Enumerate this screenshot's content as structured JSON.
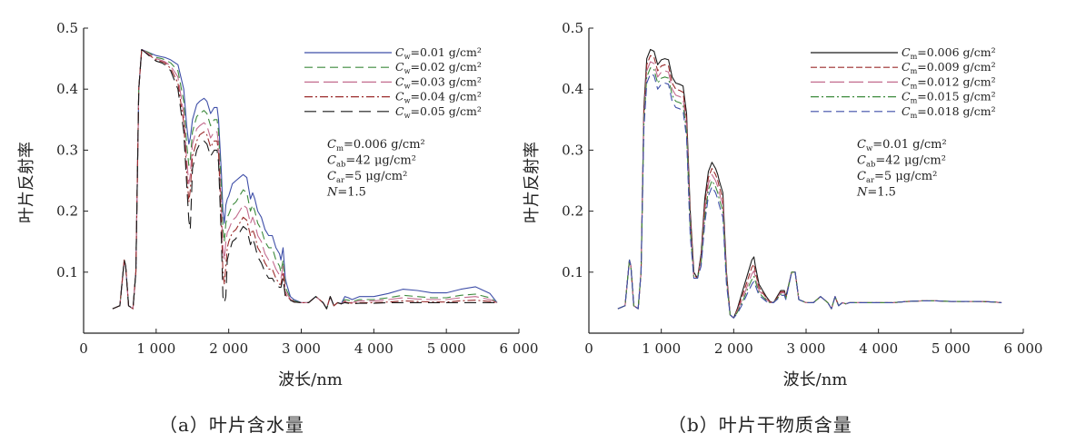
{
  "figure": {
    "captions": [
      "（a）叶片含水量",
      "（b）叶片干物质含量"
    ]
  },
  "chart_data": [
    {
      "type": "line",
      "xlabel": "波长/nm",
      "ylabel": "叶片反射率",
      "xlim": [
        0,
        6000
      ],
      "ylim": [
        0,
        0.5
      ],
      "x_ticks": [
        0,
        1000,
        2000,
        3000,
        4000,
        5000,
        6000
      ],
      "x_tick_labels": [
        "0",
        "1 000",
        "2 000",
        "3 000",
        "4 000",
        "5 000",
        "6 000"
      ],
      "y_ticks": [
        0.1,
        0.2,
        0.3,
        0.4,
        0.5
      ],
      "y_tick_labels": [
        "0.1",
        "0.2",
        "0.3",
        "0.4",
        "0.5"
      ],
      "grid": false,
      "legend_position": "top-right",
      "annotation": [
        "C_m=0.006 g/cm²",
        "C_ab=42 μg/cm²",
        "C_ar=5 μg/cm²",
        "N=1.5"
      ],
      "x": [
        400,
        500,
        560,
        580,
        620,
        680,
        720,
        760,
        800,
        900,
        1000,
        1080,
        1120,
        1200,
        1300,
        1380,
        1420,
        1450,
        1470,
        1500,
        1560,
        1600,
        1660,
        1700,
        1750,
        1800,
        1840,
        1860,
        1900,
        1920,
        1940,
        1960,
        1980,
        2000,
        2050,
        2100,
        2150,
        2200,
        2250,
        2300,
        2330,
        2360,
        2400,
        2450,
        2500,
        2550,
        2600,
        2650,
        2700,
        2720,
        2750,
        2780,
        2800,
        2850,
        2900,
        3000,
        3100,
        3200,
        3250,
        3300,
        3350,
        3400,
        3450,
        3500,
        3550,
        3600,
        3650,
        3700,
        3800,
        4000,
        4200,
        4400,
        4600,
        4800,
        5000,
        5200,
        5400,
        5600,
        5700
      ],
      "series": [
        {
          "name": "C_w=0.01 g/cm²",
          "color": "#3f4fa8",
          "dash": "",
          "values": [
            0.04,
            0.045,
            0.12,
            0.11,
            0.045,
            0.04,
            0.1,
            0.4,
            0.465,
            0.46,
            0.455,
            0.453,
            0.452,
            0.448,
            0.44,
            0.4,
            0.34,
            0.31,
            0.32,
            0.35,
            0.375,
            0.38,
            0.385,
            0.38,
            0.36,
            0.37,
            0.37,
            0.35,
            0.26,
            0.2,
            0.18,
            0.21,
            0.22,
            0.225,
            0.245,
            0.25,
            0.255,
            0.26,
            0.255,
            0.22,
            0.23,
            0.22,
            0.2,
            0.19,
            0.17,
            0.16,
            0.16,
            0.14,
            0.13,
            0.12,
            0.14,
            0.09,
            0.08,
            0.06,
            0.055,
            0.05,
            0.05,
            0.06,
            0.055,
            0.05,
            0.04,
            0.06,
            0.045,
            0.05,
            0.048,
            0.06,
            0.058,
            0.055,
            0.06,
            0.06,
            0.065,
            0.072,
            0.07,
            0.066,
            0.066,
            0.072,
            0.076,
            0.065,
            0.05
          ]
        },
        {
          "name": "C_w=0.02 g/cm²",
          "color": "#3d8a3d",
          "dash": "9 5",
          "values": [
            0.04,
            0.045,
            0.12,
            0.11,
            0.045,
            0.04,
            0.1,
            0.4,
            0.465,
            0.46,
            0.452,
            0.45,
            0.448,
            0.443,
            0.43,
            0.38,
            0.31,
            0.275,
            0.285,
            0.33,
            0.355,
            0.36,
            0.365,
            0.36,
            0.34,
            0.35,
            0.35,
            0.33,
            0.23,
            0.17,
            0.15,
            0.18,
            0.19,
            0.195,
            0.21,
            0.215,
            0.225,
            0.235,
            0.23,
            0.2,
            0.21,
            0.2,
            0.18,
            0.17,
            0.15,
            0.14,
            0.14,
            0.12,
            0.11,
            0.1,
            0.12,
            0.08,
            0.07,
            0.058,
            0.053,
            0.05,
            0.05,
            0.06,
            0.055,
            0.05,
            0.04,
            0.06,
            0.045,
            0.05,
            0.048,
            0.055,
            0.054,
            0.052,
            0.055,
            0.055,
            0.058,
            0.062,
            0.06,
            0.058,
            0.058,
            0.062,
            0.064,
            0.058,
            0.05
          ]
        },
        {
          "name": "C_w=0.03 g/cm²",
          "color": "#c36b8e",
          "dash": "16 5",
          "values": [
            0.04,
            0.045,
            0.12,
            0.11,
            0.045,
            0.04,
            0.1,
            0.4,
            0.465,
            0.458,
            0.45,
            0.447,
            0.445,
            0.438,
            0.42,
            0.36,
            0.285,
            0.245,
            0.26,
            0.31,
            0.335,
            0.34,
            0.345,
            0.34,
            0.32,
            0.33,
            0.33,
            0.31,
            0.2,
            0.14,
            0.12,
            0.15,
            0.165,
            0.17,
            0.185,
            0.19,
            0.2,
            0.21,
            0.205,
            0.18,
            0.19,
            0.18,
            0.16,
            0.15,
            0.13,
            0.12,
            0.12,
            0.105,
            0.095,
            0.09,
            0.11,
            0.07,
            0.065,
            0.056,
            0.052,
            0.05,
            0.05,
            0.06,
            0.055,
            0.05,
            0.04,
            0.06,
            0.045,
            0.05,
            0.048,
            0.053,
            0.052,
            0.05,
            0.053,
            0.053,
            0.055,
            0.058,
            0.056,
            0.055,
            0.055,
            0.058,
            0.06,
            0.055,
            0.05
          ]
        },
        {
          "name": "C_w=0.04 g/cm²",
          "color": "#9b2c2c",
          "dash": "9 3 2 3",
          "values": [
            0.04,
            0.045,
            0.12,
            0.11,
            0.045,
            0.04,
            0.1,
            0.4,
            0.465,
            0.456,
            0.448,
            0.445,
            0.443,
            0.434,
            0.41,
            0.345,
            0.265,
            0.215,
            0.235,
            0.29,
            0.315,
            0.325,
            0.33,
            0.325,
            0.305,
            0.315,
            0.315,
            0.295,
            0.175,
            0.1,
            0.08,
            0.11,
            0.14,
            0.15,
            0.165,
            0.17,
            0.18,
            0.19,
            0.185,
            0.16,
            0.17,
            0.16,
            0.14,
            0.13,
            0.115,
            0.105,
            0.105,
            0.09,
            0.08,
            0.08,
            0.1,
            0.065,
            0.06,
            0.055,
            0.051,
            0.05,
            0.05,
            0.06,
            0.055,
            0.05,
            0.04,
            0.06,
            0.045,
            0.05,
            0.048,
            0.051,
            0.05,
            0.049,
            0.05,
            0.05,
            0.051,
            0.053,
            0.052,
            0.051,
            0.051,
            0.053,
            0.054,
            0.052,
            0.05
          ]
        },
        {
          "name": "C_w=0.05 g/cm²",
          "color": "#1a1a1a",
          "dash": "13 7",
          "values": [
            0.04,
            0.045,
            0.12,
            0.11,
            0.045,
            0.04,
            0.1,
            0.4,
            0.465,
            0.455,
            0.446,
            0.443,
            0.44,
            0.43,
            0.4,
            0.33,
            0.245,
            0.185,
            0.17,
            0.27,
            0.3,
            0.31,
            0.315,
            0.31,
            0.29,
            0.3,
            0.3,
            0.28,
            0.15,
            0.06,
            0.05,
            0.06,
            0.12,
            0.13,
            0.15,
            0.155,
            0.165,
            0.175,
            0.17,
            0.145,
            0.155,
            0.145,
            0.125,
            0.115,
            0.1,
            0.09,
            0.09,
            0.08,
            0.075,
            0.075,
            0.09,
            0.06,
            0.057,
            0.054,
            0.051,
            0.05,
            0.05,
            0.06,
            0.055,
            0.05,
            0.04,
            0.06,
            0.045,
            0.05,
            0.048,
            0.05,
            0.049,
            0.048,
            0.049,
            0.049,
            0.05,
            0.05,
            0.05,
            0.05,
            0.05,
            0.05,
            0.05,
            0.05,
            0.05
          ]
        }
      ]
    },
    {
      "type": "line",
      "xlabel": "波长/nm",
      "ylabel": "叶片反射率",
      "xlim": [
        0,
        6000
      ],
      "ylim": [
        0,
        0.5
      ],
      "x_ticks": [
        0,
        1000,
        2000,
        3000,
        4000,
        5000,
        6000
      ],
      "x_tick_labels": [
        "0",
        "1 000",
        "2 000",
        "3 000",
        "4 000",
        "5 000",
        "6 000"
      ],
      "y_ticks": [
        0.1,
        0.2,
        0.3,
        0.4,
        0.5
      ],
      "y_tick_labels": [
        "0.1",
        "0.2",
        "0.3",
        "0.4",
        "0.5"
      ],
      "grid": false,
      "legend_position": "top-right",
      "annotation": [
        "C_w=0.01 g/cm²",
        "C_ab=42 μg/cm²",
        "C_ar=5 μg/cm²",
        "N=1.5"
      ],
      "x": [
        400,
        500,
        560,
        580,
        620,
        680,
        720,
        760,
        800,
        850,
        900,
        950,
        1000,
        1050,
        1100,
        1150,
        1200,
        1250,
        1300,
        1350,
        1400,
        1450,
        1500,
        1550,
        1600,
        1650,
        1700,
        1750,
        1780,
        1800,
        1850,
        1900,
        1950,
        2000,
        2050,
        2100,
        2150,
        2200,
        2250,
        2280,
        2300,
        2350,
        2400,
        2450,
        2500,
        2550,
        2600,
        2650,
        2700,
        2720,
        2800,
        2850,
        2900,
        3000,
        3100,
        3200,
        3250,
        3300,
        3350,
        3400,
        3450,
        3500,
        3550,
        3600,
        3700,
        3800,
        4000,
        4200,
        4400,
        4600,
        4800,
        5000,
        5200,
        5400,
        5600,
        5700
      ],
      "series": [
        {
          "name": "C_m=0.006 g/cm²",
          "color": "#1a1a1a",
          "dash": "",
          "values": [
            0.04,
            0.045,
            0.12,
            0.11,
            0.045,
            0.04,
            0.1,
            0.37,
            0.45,
            0.465,
            0.462,
            0.44,
            0.448,
            0.45,
            0.448,
            0.42,
            0.41,
            0.408,
            0.405,
            0.36,
            0.2,
            0.1,
            0.09,
            0.13,
            0.22,
            0.265,
            0.28,
            0.27,
            0.26,
            0.25,
            0.23,
            0.1,
            0.03,
            0.025,
            0.04,
            0.06,
            0.08,
            0.1,
            0.12,
            0.125,
            0.11,
            0.08,
            0.07,
            0.06,
            0.052,
            0.05,
            0.06,
            0.07,
            0.07,
            0.06,
            0.1,
            0.1,
            0.055,
            0.05,
            0.05,
            0.06,
            0.055,
            0.05,
            0.04,
            0.06,
            0.045,
            0.05,
            0.048,
            0.05,
            0.05,
            0.05,
            0.05,
            0.05,
            0.052,
            0.053,
            0.053,
            0.052,
            0.052,
            0.052,
            0.051,
            0.05
          ]
        },
        {
          "name": "C_m=0.009 g/cm²",
          "color": "#9b2c2c",
          "dash": "7 3",
          "values": [
            0.04,
            0.045,
            0.12,
            0.11,
            0.045,
            0.04,
            0.1,
            0.36,
            0.44,
            0.455,
            0.452,
            0.43,
            0.438,
            0.44,
            0.438,
            0.41,
            0.4,
            0.398,
            0.395,
            0.35,
            0.19,
            0.095,
            0.09,
            0.125,
            0.21,
            0.255,
            0.27,
            0.26,
            0.25,
            0.24,
            0.22,
            0.095,
            0.03,
            0.025,
            0.038,
            0.055,
            0.072,
            0.09,
            0.108,
            0.113,
            0.1,
            0.075,
            0.066,
            0.058,
            0.051,
            0.05,
            0.058,
            0.068,
            0.068,
            0.058,
            0.1,
            0.1,
            0.055,
            0.05,
            0.05,
            0.06,
            0.055,
            0.05,
            0.04,
            0.06,
            0.045,
            0.05,
            0.048,
            0.05,
            0.05,
            0.05,
            0.05,
            0.05,
            0.052,
            0.053,
            0.053,
            0.052,
            0.052,
            0.052,
            0.051,
            0.05
          ]
        },
        {
          "name": "C_m=0.012 g/cm²",
          "color": "#c36b8e",
          "dash": "16 5",
          "values": [
            0.04,
            0.045,
            0.12,
            0.11,
            0.045,
            0.04,
            0.1,
            0.355,
            0.43,
            0.445,
            0.442,
            0.42,
            0.428,
            0.43,
            0.428,
            0.4,
            0.39,
            0.388,
            0.385,
            0.34,
            0.18,
            0.09,
            0.09,
            0.12,
            0.2,
            0.245,
            0.26,
            0.25,
            0.24,
            0.23,
            0.21,
            0.09,
            0.03,
            0.025,
            0.036,
            0.05,
            0.065,
            0.082,
            0.097,
            0.102,
            0.092,
            0.07,
            0.063,
            0.056,
            0.05,
            0.05,
            0.057,
            0.066,
            0.066,
            0.057,
            0.1,
            0.1,
            0.055,
            0.05,
            0.05,
            0.06,
            0.055,
            0.05,
            0.04,
            0.06,
            0.045,
            0.05,
            0.048,
            0.05,
            0.05,
            0.05,
            0.05,
            0.05,
            0.052,
            0.053,
            0.053,
            0.052,
            0.052,
            0.052,
            0.051,
            0.05
          ]
        },
        {
          "name": "C_m=0.015 g/cm²",
          "color": "#3d8a3d",
          "dash": "9 3 2 3",
          "values": [
            0.04,
            0.045,
            0.12,
            0.11,
            0.045,
            0.04,
            0.1,
            0.345,
            0.42,
            0.435,
            0.432,
            0.41,
            0.418,
            0.42,
            0.418,
            0.39,
            0.38,
            0.378,
            0.375,
            0.33,
            0.17,
            0.09,
            0.09,
            0.115,
            0.19,
            0.235,
            0.25,
            0.24,
            0.23,
            0.22,
            0.2,
            0.085,
            0.03,
            0.025,
            0.034,
            0.046,
            0.06,
            0.075,
            0.088,
            0.093,
            0.085,
            0.066,
            0.06,
            0.054,
            0.05,
            0.05,
            0.056,
            0.064,
            0.064,
            0.056,
            0.1,
            0.1,
            0.055,
            0.05,
            0.05,
            0.06,
            0.055,
            0.05,
            0.04,
            0.06,
            0.045,
            0.05,
            0.048,
            0.05,
            0.05,
            0.05,
            0.05,
            0.05,
            0.052,
            0.053,
            0.053,
            0.052,
            0.052,
            0.052,
            0.051,
            0.05
          ]
        },
        {
          "name": "C_m=0.018 g/cm²",
          "color": "#3f4fa8",
          "dash": "9 5",
          "values": [
            0.04,
            0.045,
            0.12,
            0.11,
            0.045,
            0.04,
            0.1,
            0.335,
            0.41,
            0.425,
            0.422,
            0.4,
            0.408,
            0.41,
            0.408,
            0.38,
            0.37,
            0.368,
            0.365,
            0.32,
            0.16,
            0.09,
            0.09,
            0.11,
            0.18,
            0.225,
            0.24,
            0.23,
            0.22,
            0.21,
            0.19,
            0.08,
            0.03,
            0.025,
            0.032,
            0.043,
            0.055,
            0.068,
            0.08,
            0.085,
            0.078,
            0.062,
            0.057,
            0.052,
            0.05,
            0.05,
            0.055,
            0.062,
            0.062,
            0.055,
            0.1,
            0.1,
            0.055,
            0.05,
            0.05,
            0.06,
            0.055,
            0.05,
            0.04,
            0.06,
            0.045,
            0.05,
            0.048,
            0.05,
            0.05,
            0.05,
            0.05,
            0.05,
            0.052,
            0.053,
            0.053,
            0.052,
            0.052,
            0.052,
            0.051,
            0.05
          ]
        }
      ]
    }
  ]
}
